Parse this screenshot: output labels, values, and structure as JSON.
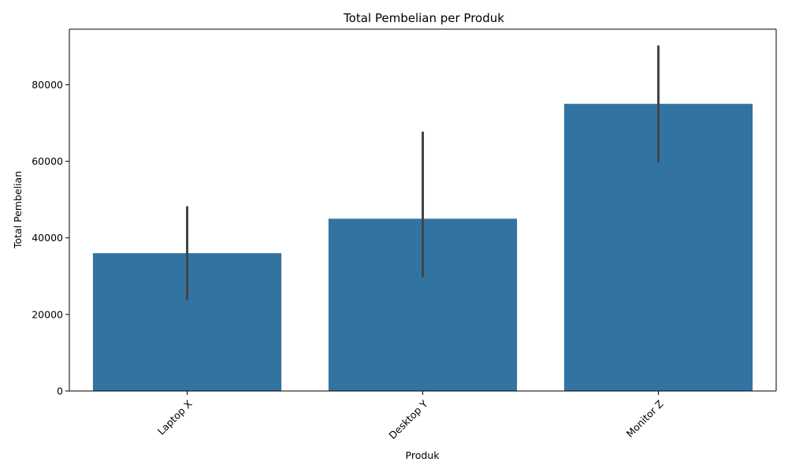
{
  "chart_data": {
    "type": "bar",
    "title": "Total Pembelian per Produk",
    "xlabel": "Produk",
    "ylabel": "Total Pembelian",
    "categories": [
      "Laptop X",
      "Desktop Y",
      "Monitor Z"
    ],
    "values": [
      36000,
      45000,
      75000
    ],
    "error_low": [
      24000,
      30000,
      60000
    ],
    "error_high": [
      48000,
      67500,
      90000
    ],
    "ylim": [
      0,
      94500
    ],
    "yticks": [
      0,
      20000,
      40000,
      60000,
      80000
    ],
    "xtick_rotation": 45,
    "grid": false,
    "bar_color": "#3274a1",
    "error_color": "#444444"
  }
}
